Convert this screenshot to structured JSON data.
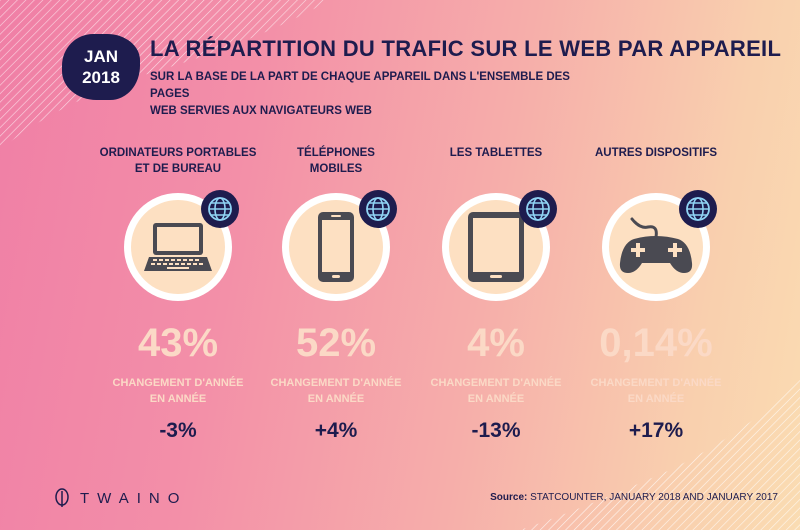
{
  "header": {
    "badge_month": "JAN",
    "badge_year": "2018",
    "title": "LA RÉPARTITION DU TRAFIC SUR LE WEB PAR APPAREIL",
    "subtitle_line1": "SUR LA BASE DE LA PART DE CHAQUE APPAREIL DANS L'ENSEMBLE DES PAGES",
    "subtitle_line2": "WEB SERVIES AUX NAVIGATEURS WEB"
  },
  "devices": [
    {
      "label_line1": "ORDINATEURS PORTABLES",
      "label_line2": "ET DE BUREAU",
      "icon": "laptop-icon",
      "share": "43%",
      "change_label_line1": "CHANGEMENT D'ANNÉE",
      "change_label_line2": "EN ANNÉE",
      "change": "-3%"
    },
    {
      "label_line1": "TÉLÉPHONES",
      "label_line2": "MOBILES",
      "icon": "phone-icon",
      "share": "52%",
      "change_label_line1": "CHANGEMENT D'ANNÉE",
      "change_label_line2": "EN ANNÉE",
      "change": "+4%"
    },
    {
      "label_line1": "LES TABLETTES",
      "label_line2": "",
      "icon": "tablet-icon",
      "share": "4%",
      "change_label_line1": "CHANGEMENT D'ANNÉE",
      "change_label_line2": "EN ANNÉE",
      "change": "-13%"
    },
    {
      "label_line1": "AUTRES DISPOSITIFS",
      "label_line2": "",
      "icon": "gamepad-icon",
      "share": "0,14%",
      "change_label_line1": "CHANGEMENT D'ANNÉE",
      "change_label_line2": "EN ANNÉE",
      "change": "+17%"
    }
  ],
  "footer": {
    "logo_text": "TWAINO",
    "source_label": "Source:",
    "source_text": " STATCOUNTER, JANUARY 2018 AND JANUARY 2017"
  },
  "colors": {
    "navy": "#1e1c4e",
    "icon_gray": "#4a4a52",
    "circle_fill": "#fde0c2",
    "pale_text": "#fbd9c6"
  }
}
